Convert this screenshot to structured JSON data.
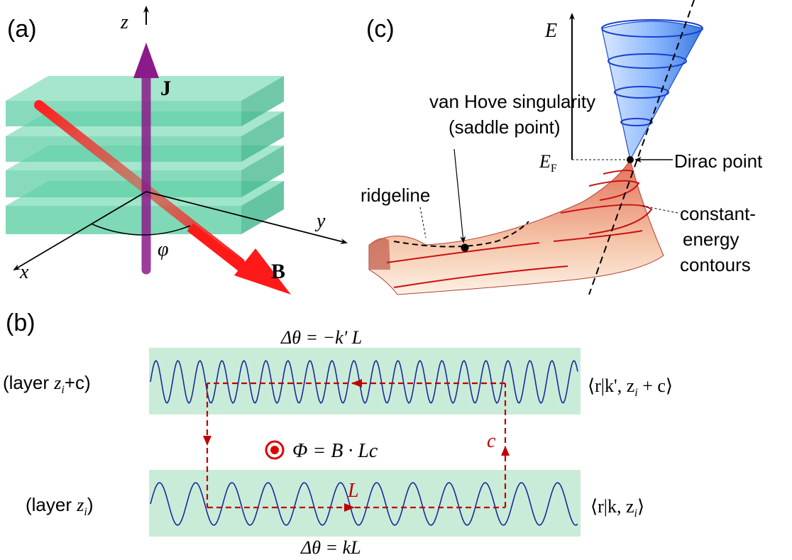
{
  "panels": {
    "a": {
      "label": "(a)",
      "axis_z": "z",
      "axis_y": "y",
      "axis_x": "x",
      "current": "J",
      "field": "B",
      "angle": "φ"
    },
    "b": {
      "label": "(b)",
      "top_layer_label_prefix": "(layer ",
      "top_layer_z": "z",
      "top_layer_sub": "i",
      "top_layer_suffix": "+c)",
      "bottom_layer_label_prefix": "(layer ",
      "bottom_layer_z": "z",
      "bottom_layer_sub": "i",
      "bottom_layer_suffix": ")",
      "phase_top": "Δθ = −k' L",
      "phase_bottom": "Δθ = kL",
      "flux": "Φ = B · Lc",
      "loop_L": "L",
      "loop_c": "c",
      "ket_top": "⟨r|k', z",
      "ket_top_sub": "i",
      "ket_top_end": " + c⟩",
      "ket_bottom": "⟨r|k, z",
      "ket_bottom_sub": "i",
      "ket_bottom_end": "⟩"
    },
    "c": {
      "label": "(c)",
      "energy_axis": "E",
      "fermi": "E",
      "fermi_sub": "F",
      "dirac_point": "Dirac point",
      "vhs_line1": "van Hove singularity",
      "vhs_line2": "(saddle point)",
      "ridgeline": "ridgeline",
      "contours_line1": "constant-",
      "contours_line2": "energy",
      "contours_line3": "contours"
    }
  },
  "colors": {
    "layer_green": "#4fc9a0",
    "layer_band": "#c9ecd9",
    "current_purple": "#8b1a8b",
    "field_red": "#ff1a1a",
    "wave_blue": "#1b2a9a",
    "loop_red": "#c00000",
    "cone_blue": "#7fb0ff",
    "sheet_orange": "#e8806a"
  }
}
